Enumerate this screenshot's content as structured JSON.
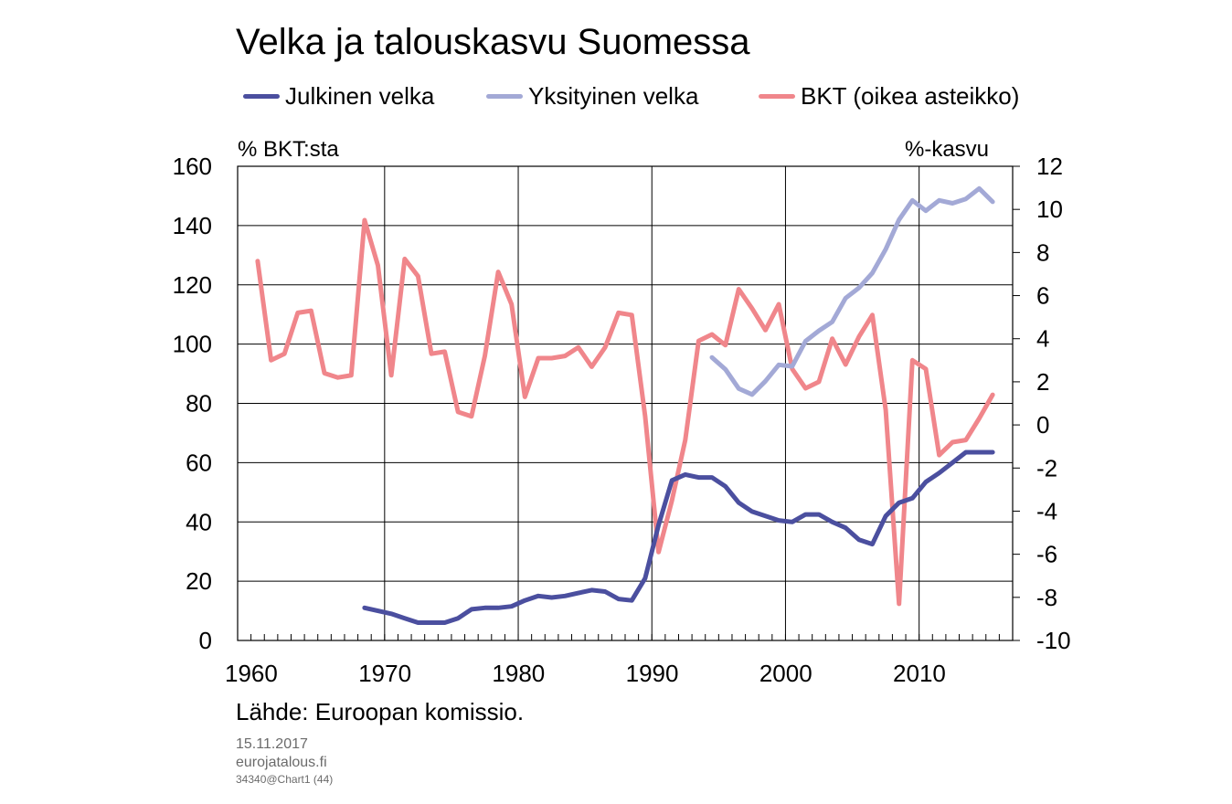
{
  "chart_data": {
    "type": "line",
    "title": "Velka ja talouskasvu Suomessa",
    "left_axis_label": "% BKT:sta",
    "right_axis_label": "%-kasvu",
    "ylim_left": [
      0,
      160
    ],
    "ylim_right": [
      -10,
      12
    ],
    "xlim": [
      1958.5,
      2016.5
    ],
    "left_ticks": [
      0,
      20,
      40,
      60,
      80,
      100,
      120,
      140,
      160
    ],
    "right_ticks": [
      -10,
      -8,
      -6,
      -4,
      -2,
      0,
      2,
      4,
      6,
      8,
      10,
      12
    ],
    "x_ticks": [
      1960,
      1970,
      1980,
      1990,
      2000,
      2010
    ],
    "grid": true,
    "legend_position": "top",
    "series": [
      {
        "name": "Julkinen velka",
        "axis": "left",
        "color": "#4b4f9f",
        "x": [
          1968,
          1969,
          1970,
          1971,
          1972,
          1973,
          1974,
          1975,
          1976,
          1977,
          1978,
          1979,
          1980,
          1981,
          1982,
          1983,
          1984,
          1985,
          1986,
          1987,
          1988,
          1989,
          1990,
          1991,
          1992,
          1993,
          1994,
          1995,
          1996,
          1997,
          1998,
          1999,
          2000,
          2001,
          2002,
          2003,
          2004,
          2005,
          2006,
          2007,
          2008,
          2009,
          2010,
          2011,
          2012,
          2013,
          2014,
          2015
        ],
        "values": [
          11,
          10,
          9,
          7.5,
          6,
          6,
          6,
          7.5,
          10.5,
          11,
          11,
          11.5,
          13.5,
          15,
          14.5,
          15,
          16,
          17,
          16.5,
          14,
          13.5,
          21,
          39,
          54,
          56,
          55,
          55,
          52,
          46.5,
          43.5,
          42,
          40.5,
          40,
          42.5,
          42.5,
          40,
          38,
          34,
          32.5,
          42,
          46.5,
          48,
          53.5,
          56.5,
          60,
          63.5,
          63.5,
          63.5
        ]
      },
      {
        "name": "Yksityinen velka",
        "axis": "left",
        "color": "#a3a9d6",
        "x": [
          1994,
          1995,
          1996,
          1997,
          1998,
          1999,
          2000,
          2001,
          2002,
          2003,
          2004,
          2005,
          2006,
          2007,
          2008,
          2009,
          2010,
          2011,
          2012,
          2013,
          2014,
          2015
        ],
        "values": [
          95.5,
          91.5,
          85,
          83,
          87.5,
          93,
          92.5,
          101,
          104.5,
          107.5,
          115.5,
          119,
          124,
          132,
          142,
          148.5,
          145,
          148.5,
          147.5,
          149,
          152.5,
          148
        ]
      },
      {
        "name": "BKT (oikea asteikko)",
        "axis": "right",
        "color": "#f0868b",
        "x": [
          1960,
          1961,
          1962,
          1963,
          1964,
          1965,
          1966,
          1967,
          1968,
          1969,
          1970,
          1971,
          1972,
          1973,
          1974,
          1975,
          1976,
          1977,
          1978,
          1979,
          1980,
          1981,
          1982,
          1983,
          1984,
          1985,
          1986,
          1987,
          1988,
          1989,
          1990,
          1991,
          1992,
          1993,
          1994,
          1995,
          1996,
          1997,
          1998,
          1999,
          2000,
          2001,
          2002,
          2003,
          2004,
          2005,
          2006,
          2007,
          2008,
          2009,
          2010,
          2011,
          2012,
          2013,
          2014,
          2015
        ],
        "values": [
          7.6,
          3.0,
          3.3,
          5.2,
          5.3,
          2.4,
          2.2,
          2.3,
          9.5,
          7.4,
          2.3,
          7.7,
          6.9,
          3.3,
          3.4,
          0.6,
          0.4,
          3.2,
          7.1,
          5.6,
          1.3,
          3.1,
          3.1,
          3.2,
          3.6,
          2.7,
          3.6,
          5.2,
          5.1,
          0.4,
          -5.9,
          -3.5,
          -0.7,
          3.9,
          4.2,
          3.7,
          6.3,
          5.4,
          4.4,
          5.6,
          2.6,
          1.7,
          2.0,
          4.0,
          2.8,
          4.1,
          5.1,
          0.7,
          -8.3,
          3.0,
          2.6,
          -1.4,
          -0.8,
          -0.7,
          0.3,
          1.4
        ]
      }
    ]
  },
  "source": "Lähde: Euroopan komissio.",
  "meta": {
    "date": "15.11.2017",
    "site": "eurojatalous.fi",
    "chart_id": "34340@Chart1 (44)"
  }
}
